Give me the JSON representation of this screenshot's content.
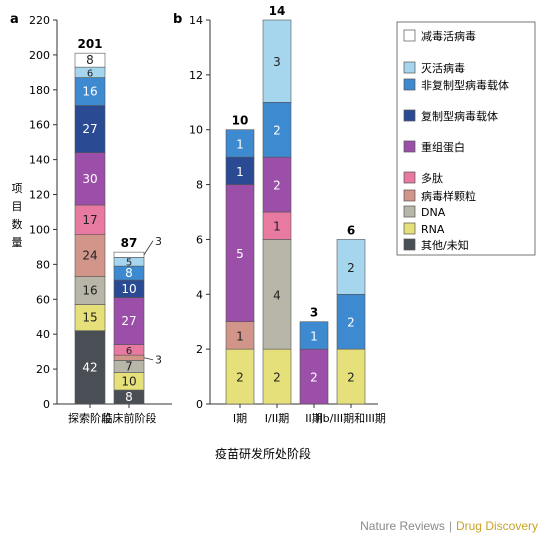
{
  "chart_data": [
    {
      "panel": "a",
      "type": "bar",
      "stacked": true,
      "ylabel": "项目数量",
      "ylim": [
        0,
        220
      ],
      "yticks": [
        0,
        20,
        40,
        60,
        80,
        100,
        120,
        140,
        160,
        180,
        200,
        220
      ],
      "categories": [
        "探索阶段",
        "临床前阶段"
      ],
      "totals": [
        201,
        87
      ],
      "series": [
        {
          "name": "其他/未知",
          "color": "#4a4f55",
          "values": [
            42,
            8
          ]
        },
        {
          "name": "RNA",
          "color": "#e6e07a",
          "values": [
            15,
            10
          ]
        },
        {
          "name": "DNA",
          "color": "#b7b6a9",
          "values": [
            16,
            7
          ]
        },
        {
          "name": "病毒样颗粒",
          "color": "#d2958a",
          "values": [
            24,
            3
          ]
        },
        {
          "name": "多肽",
          "color": "#e87aa2",
          "values": [
            17,
            6
          ]
        },
        {
          "name": "重组蛋白",
          "color": "#9b4fa8",
          "values": [
            30,
            27
          ]
        },
        {
          "name": "复制型病毒载体",
          "color": "#2a4a93",
          "values": [
            27,
            10
          ]
        },
        {
          "name": "非复制型病毒载体",
          "color": "#3e8ad0",
          "values": [
            16,
            8
          ]
        },
        {
          "name": "灭活病毒",
          "color": "#a6d6ee",
          "values": [
            6,
            5
          ]
        },
        {
          "name": "减毒活病毒",
          "color": "#ffffff",
          "values": [
            8,
            3
          ]
        }
      ],
      "segment_labels": [
        [
          "42",
          "15",
          "16",
          "24",
          "17",
          "30",
          "27",
          "16",
          "6",
          "8"
        ],
        [
          "8",
          "10",
          "7",
          "3",
          "6",
          "27",
          "10",
          "8",
          "5",
          "3"
        ]
      ]
    },
    {
      "panel": "b",
      "type": "bar",
      "stacked": true,
      "xlabel": "疫苗研发所处阶段",
      "ylim": [
        0,
        14
      ],
      "yticks": [
        0,
        2,
        4,
        6,
        8,
        10,
        12,
        14
      ],
      "categories": [
        "I期",
        "I/II期",
        "II期",
        "IIb/III期和III期"
      ],
      "totals": [
        10,
        14,
        3,
        6
      ],
      "series": [
        {
          "name": "RNA",
          "color": "#e6e07a",
          "values": [
            2,
            2,
            0,
            2
          ]
        },
        {
          "name": "DNA",
          "color": "#b7b6a9",
          "values": [
            0,
            4,
            0,
            0
          ]
        },
        {
          "name": "病毒样颗粒",
          "color": "#d2958a",
          "values": [
            1,
            0,
            0,
            0
          ]
        },
        {
          "name": "多肽",
          "color": "#e87aa2",
          "values": [
            0,
            1,
            0,
            0
          ]
        },
        {
          "name": "重组蛋白",
          "color": "#9b4fa8",
          "values": [
            5,
            2,
            2,
            0
          ]
        },
        {
          "name": "复制型病毒载体",
          "color": "#2a4a93",
          "values": [
            1,
            0,
            0,
            0
          ]
        },
        {
          "name": "非复制型病毒载体",
          "color": "#3e8ad0",
          "values": [
            1,
            2,
            1,
            2
          ]
        },
        {
          "name": "灭活病毒",
          "color": "#a6d6ee",
          "values": [
            0,
            3,
            0,
            2
          ]
        }
      ]
    }
  ],
  "legend": [
    {
      "name": "减毒活病毒",
      "color": "#ffffff"
    },
    {
      "name": "灭活病毒",
      "color": "#a6d6ee"
    },
    {
      "name": "非复制型病毒载体",
      "color": "#3e8ad0"
    },
    {
      "name": "复制型病毒载体",
      "color": "#2a4a93"
    },
    {
      "name": "重组蛋白",
      "color": "#9b4fa8"
    },
    {
      "name": "多肽",
      "color": "#e87aa2"
    },
    {
      "name": "病毒样颗粒",
      "color": "#d2958a"
    },
    {
      "name": "DNA",
      "color": "#b7b6a9"
    },
    {
      "name": "RNA",
      "color": "#e6e07a"
    },
    {
      "name": "其他/未知",
      "color": "#4a4f55"
    }
  ],
  "panel_letters": [
    "a",
    "b"
  ],
  "footer": {
    "brand": "Nature Reviews",
    "separator": "|",
    "journal": "Drug Discovery"
  }
}
